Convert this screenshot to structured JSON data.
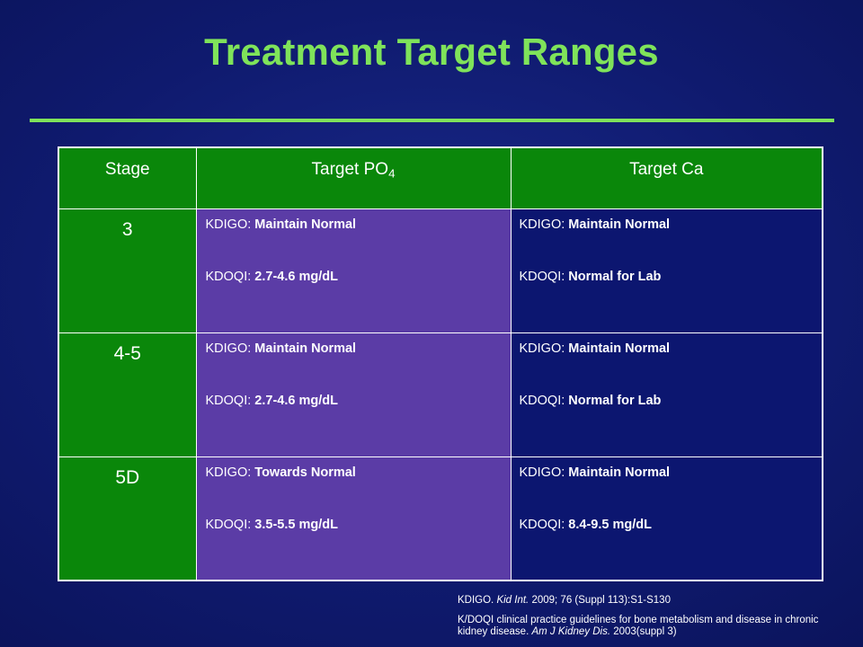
{
  "slide": {
    "title": "Treatment Target Ranges"
  },
  "table": {
    "headers": {
      "stage": "Stage",
      "po4_prefix": "Target PO",
      "po4_subscript": "4",
      "ca": "Target Ca"
    },
    "rows": [
      {
        "stage": "3",
        "po4": [
          {
            "label": "KDIGO: ",
            "value": "Maintain Normal"
          },
          {
            "label": "KDOQI: ",
            "value": "2.7-4.6 mg/dL"
          }
        ],
        "ca": [
          {
            "label": "KDIGO: ",
            "value": "Maintain Normal"
          },
          {
            "label": "KDOQI: ",
            "value": "Normal for Lab"
          }
        ]
      },
      {
        "stage": "4-5",
        "po4": [
          {
            "label": "KDIGO: ",
            "value": "Maintain Normal"
          },
          {
            "label": "KDOQI: ",
            "value": "2.7-4.6 mg/dL"
          }
        ],
        "ca": [
          {
            "label": "KDIGO: ",
            "value": "Maintain Normal"
          },
          {
            "label": "KDOQI: ",
            "value": "Normal for Lab"
          }
        ]
      },
      {
        "stage": "5D",
        "po4": [
          {
            "label": "KDIGO: ",
            "value": "Towards Normal"
          },
          {
            "label": "KDOQI: ",
            "value": "3.5-5.5 mg/dL"
          }
        ],
        "ca": [
          {
            "label": "KDIGO: ",
            "value": "Maintain Normal"
          },
          {
            "label": "KDOQI: ",
            "value": "8.4-9.5 mg/dL"
          }
        ]
      }
    ]
  },
  "references": {
    "ref1": {
      "lead": "KDIGO. ",
      "journal": "Kid Int.",
      "rest": " 2009; 76 (Suppl 113):S1-S130"
    },
    "ref2": {
      "lead": "K/DOQI clinical practice guidelines for bone metabolism and disease in chronic kidney disease. ",
      "journal": "Am J Kidney Dis.",
      "rest": " 2003(suppl 3)"
    }
  },
  "colors": {
    "title": "#7fe35a",
    "background": "#0f1a6e",
    "header_green": "#0a870a",
    "po4_purple": "#5b3ca6",
    "ca_navy": "#0c1670"
  }
}
